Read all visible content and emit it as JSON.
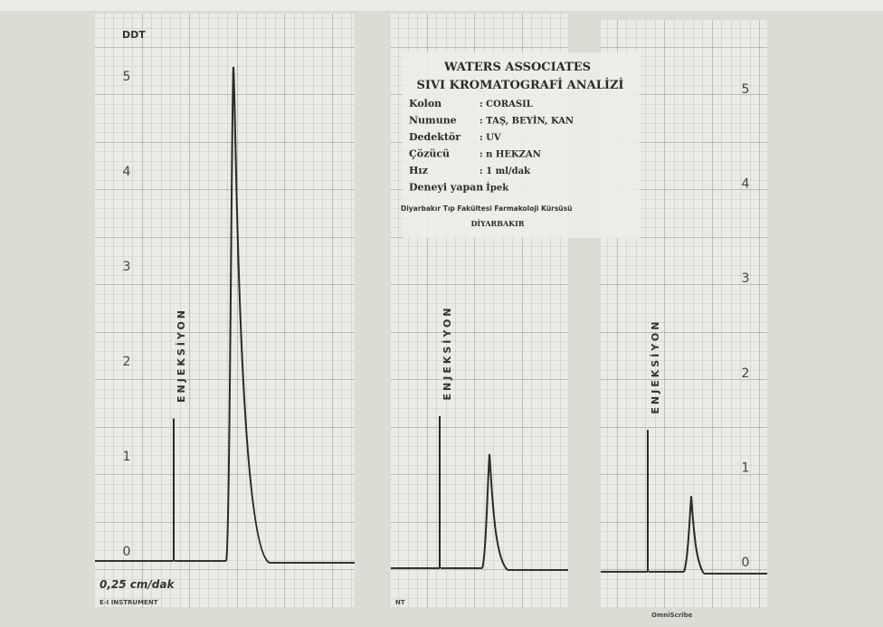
{
  "strips": [
    {
      "unit": "DDT",
      "yticks": [
        0,
        1,
        2,
        3,
        4,
        5
      ],
      "injection": "ENJEKSİYON",
      "injection_height": 1.5,
      "peak": 5.2,
      "speed": "0,25 cm/dak",
      "footer": "E-I INSTRUMENT"
    },
    {
      "injection": "ENJEKSİYON",
      "injection_height": 1.6,
      "peak": 1.2,
      "footer": "NT"
    },
    {
      "yticks": [
        0,
        1,
        2,
        3,
        4,
        5
      ],
      "injection": "ENJEKSİYON",
      "injection_height": 1.5,
      "peak": 0.8,
      "footer": "OmniScribe"
    }
  ],
  "label": {
    "title": "WATERS ASSOCIATES",
    "subtitle": "SIVI KROMATOGRAFİ ANALİZİ",
    "rows": [
      [
        "Kolon",
        ": CORASIL"
      ],
      [
        "Numune",
        ": TAŞ, BEYİN, KAN"
      ],
      [
        "Dedektör",
        ": UV"
      ],
      [
        "Çözücü",
        ": n HEKZAN"
      ],
      [
        "Hız",
        ": 1 ml/dak"
      ],
      [
        "Deneyi yapan",
        ": İpek"
      ]
    ],
    "institution": "Diyarbakır Tıp Fakültesi Farmakoloji Kürsüsü",
    "city": "DİYARBAKIR"
  }
}
